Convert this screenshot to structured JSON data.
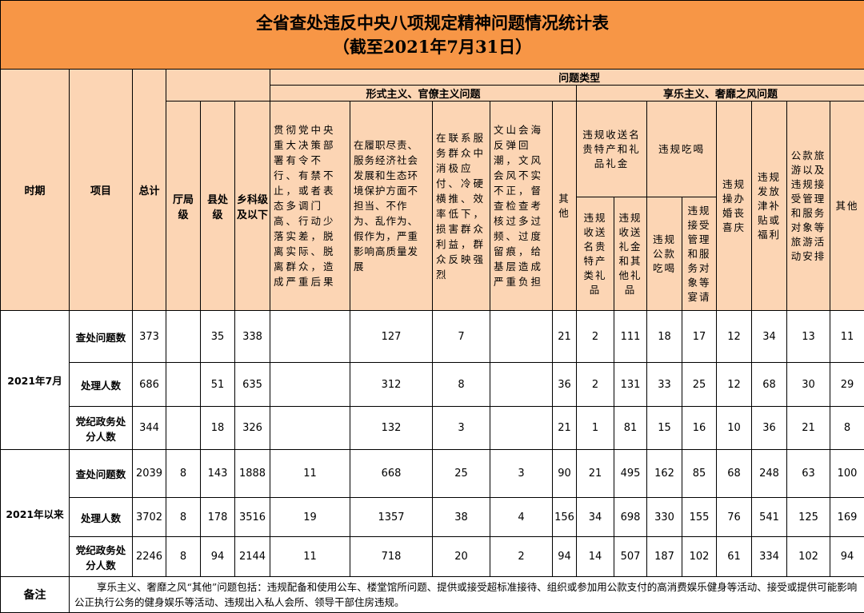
{
  "title": {
    "line1": "全省查处违反中央八项规定精神问题情况统计表",
    "line2": "（截至2021年7月31日）"
  },
  "colors": {
    "title_bg": "#f79646",
    "header_bg": "#fcd5b4"
  },
  "header": {
    "period": "时期",
    "item": "项目",
    "total": "总计",
    "level_ting": "厅局级",
    "level_xian": "县处级",
    "level_xiang": "乡科级及以下",
    "problem_type": "问题类型",
    "formalism": "形式主义、官僚主义问题",
    "hedonism": "享乐主义、奢靡之风问题",
    "f1": "贯彻党中央重大决策部署有令不行、有禁不止，或者表态多调门高、行动少落实差，脱离实际、脱离群众，造成严重后果",
    "f2": "在履职尽责、服务经济社会发展和生态环境保护方面不担当、不作为、乱作为、假作为，严重影响高质量发展",
    "f3": "在联系服务群众中消极应付、冷硬横推、效率低下，损害群众利益，群众反映强烈",
    "f4": "文山会海反弹回潮，文风会风不实不正，督查检查考核过多过频、过度留痕，给基层造成严重负担",
    "f_other": "其他",
    "h_gift": "违规收送名贵特产和礼品礼金",
    "h_eat": "违规吃喝",
    "h_gift1": "违规收送名贵特产类礼品",
    "h_gift2": "违规收送礼金和其他礼品",
    "h_eat1": "违规公款吃喝",
    "h_eat2": "违规接受管理和服务对象等宴请",
    "h_wedding": "违规操办婚丧喜庆",
    "h_subsidy": "违规发放津补贴或福利",
    "h_travel": "公款旅游以及违规接受管理和服务对象等旅游活动安排",
    "h_other": "其他"
  },
  "groups": [
    {
      "period": "2021年7月",
      "rows": [
        {
          "item": "查处问题数",
          "cells": [
            "373",
            "",
            "35",
            "338",
            "",
            "127",
            "7",
            "",
            "21",
            "2",
            "111",
            "18",
            "17",
            "12",
            "34",
            "13",
            "11"
          ]
        },
        {
          "item": "处理人数",
          "cells": [
            "686",
            "",
            "51",
            "635",
            "",
            "312",
            "8",
            "",
            "36",
            "2",
            "131",
            "33",
            "25",
            "12",
            "68",
            "30",
            "29"
          ]
        },
        {
          "item": "党纪政务处分人数",
          "cells": [
            "344",
            "",
            "18",
            "326",
            "",
            "132",
            "3",
            "",
            "21",
            "1",
            "81",
            "15",
            "16",
            "10",
            "36",
            "21",
            "8"
          ]
        }
      ]
    },
    {
      "period": "2021年以来",
      "rows": [
        {
          "item": "查处问题数",
          "cells": [
            "2039",
            "8",
            "143",
            "1888",
            "11",
            "668",
            "25",
            "3",
            "90",
            "21",
            "495",
            "162",
            "85",
            "68",
            "248",
            "63",
            "100"
          ]
        },
        {
          "item": "处理人数",
          "cells": [
            "3702",
            "8",
            "178",
            "3516",
            "19",
            "1357",
            "38",
            "4",
            "156",
            "34",
            "698",
            "330",
            "155",
            "76",
            "541",
            "125",
            "169"
          ]
        },
        {
          "item": "党纪政务处分人数",
          "cells": [
            "2246",
            "8",
            "94",
            "2144",
            "11",
            "718",
            "20",
            "2",
            "94",
            "14",
            "507",
            "187",
            "102",
            "61",
            "334",
            "102",
            "94"
          ]
        }
      ]
    }
  ],
  "note": {
    "label": "备注",
    "text": "享乐主义、奢靡之风“其他”问题包括：违规配备和使用公车、楼堂馆所问题、提供或接受超标准接待、组织或参加用公款支付的高消费娱乐健身等活动、接受或提供可能影响公正执行公务的健身娱乐等活动、违规出入私人会所、领导干部住房违规。"
  }
}
